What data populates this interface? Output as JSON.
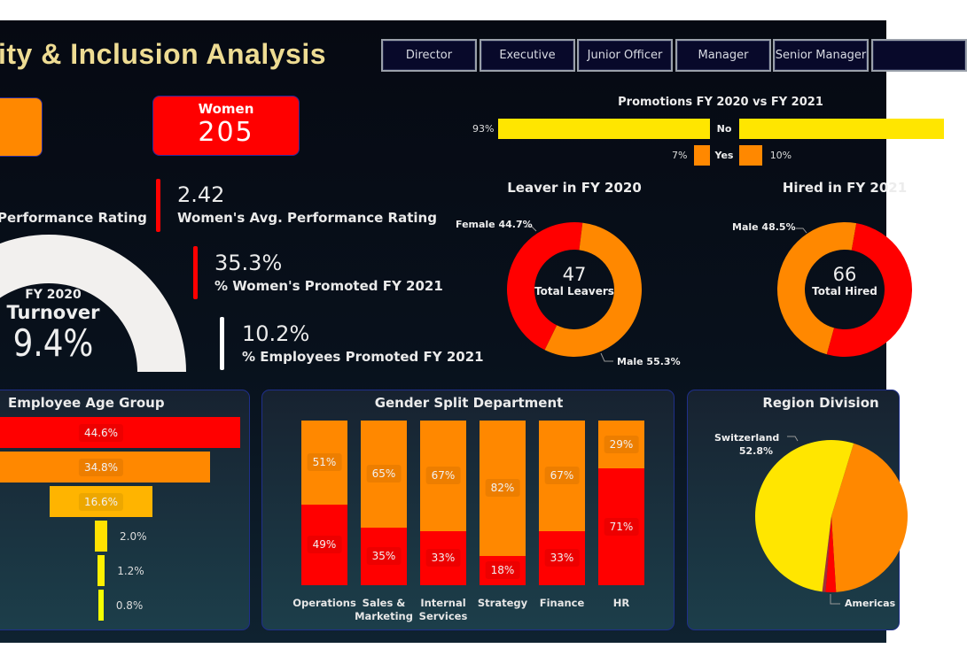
{
  "header": {
    "title": "ity & Inclusion Analysis",
    "slicers": [
      {
        "label": "Director"
      },
      {
        "label": "Executive"
      },
      {
        "label": "Junior Officer"
      },
      {
        "label": "Manager"
      },
      {
        "label": "Senior Manager"
      },
      {
        "label": ""
      }
    ]
  },
  "cards": {
    "women_label": "Women",
    "women_value": "205"
  },
  "kpis": [
    {
      "value": "",
      "label": "Performance Rating"
    },
    {
      "value": "2.42",
      "label": "Women's Avg. Performance Rating"
    },
    {
      "value": "35.3%",
      "label": "% Women's Promoted FY 2021"
    },
    {
      "value": "10.2%",
      "label": "% Employees Promoted FY 2021"
    }
  ],
  "turnover": {
    "year": "FY 2020",
    "label": "Turnover",
    "value": "9.4%",
    "fraction": 0.094
  },
  "colors": {
    "red": "#FF0000",
    "orange": "#FF8800",
    "amber": "#FFB400",
    "yellow": "#FFE600",
    "title": "#EEDC93"
  },
  "chart_data": [
    {
      "type": "bar",
      "title": "Promotions FY 2020 vs FY 2021",
      "categories": [
        "No",
        "Yes"
      ],
      "series": [
        {
          "values": [
            93,
            7
          ],
          "labels": [
            "93%",
            "7%"
          ]
        },
        {
          "values": [
            90,
            10
          ],
          "labels": [
            "",
            "10%"
          ]
        }
      ]
    },
    {
      "type": "pie",
      "title": "Leaver in FY 2020",
      "center_value": "47",
      "center_label": "Total Leavers",
      "slices": [
        {
          "name": "Female",
          "value": 44.7,
          "label": "Female 44.7%"
        },
        {
          "name": "Male",
          "value": 55.3,
          "label": "Male 55.3%"
        }
      ]
    },
    {
      "type": "pie",
      "title": "Hired in FY 2021",
      "center_value": "66",
      "center_label": "Total Hired",
      "slices": [
        {
          "name": "Male",
          "value": 48.5,
          "label": "Male 48.5%"
        },
        {
          "name": "Female",
          "value": 51.5,
          "label": ""
        }
      ]
    },
    {
      "type": "bar",
      "title": "Employee Age Group",
      "values": [
        44.6,
        34.8,
        16.6,
        2.0,
        1.2,
        0.8
      ],
      "labels": [
        "44.6%",
        "34.8%",
        "16.6%",
        "2.0%",
        "1.2%",
        "0.8%"
      ]
    },
    {
      "type": "bar",
      "title": "Gender Split Department",
      "stacked": true,
      "categories": [
        "Operations",
        "Sales & Marketing",
        "Internal Services",
        "Strategy",
        "Finance",
        "HR"
      ],
      "series": [
        {
          "values": [
            49,
            35,
            33,
            18,
            33,
            71
          ]
        },
        {
          "values": [
            51,
            65,
            67,
            82,
            67,
            29
          ]
        }
      ]
    },
    {
      "type": "pie",
      "title": "Region Division",
      "slices": [
        {
          "name": "Switzerland",
          "value": 52.8,
          "label": "Switzerland 52.8%"
        },
        {
          "name": "",
          "value": 44.3
        },
        {
          "name": "Americas",
          "value": 2.2,
          "label": "Americas"
        },
        {
          "name": "",
          "value": 0.7
        }
      ]
    }
  ]
}
